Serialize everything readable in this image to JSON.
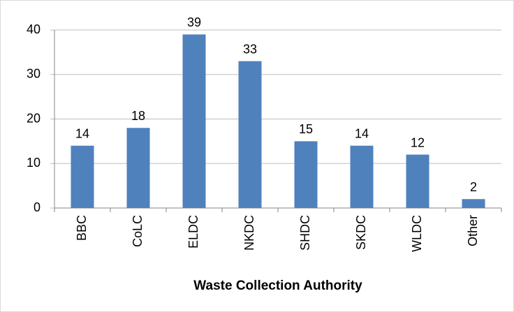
{
  "chart_data": {
    "type": "bar",
    "x_label": "Waste Collection Authority",
    "categories": [
      "BBC",
      "CoLC",
      "ELDC",
      "NKDC",
      "SHDC",
      "SKDC",
      "WLDC",
      "Other"
    ],
    "values": [
      14,
      18,
      39,
      33,
      15,
      14,
      12,
      2
    ],
    "color": "#4f81bd",
    "ylim": [
      0,
      40
    ],
    "yticks": [
      0,
      10,
      20,
      30,
      40
    ],
    "grid": true
  }
}
